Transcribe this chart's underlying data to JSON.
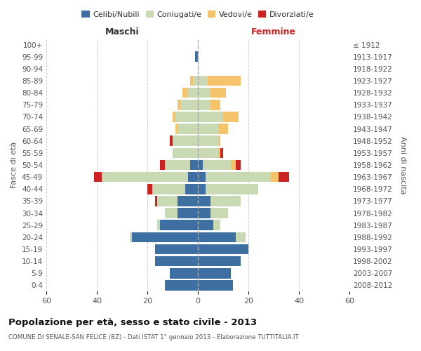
{
  "age_groups": [
    "0-4",
    "5-9",
    "10-14",
    "15-19",
    "20-24",
    "25-29",
    "30-34",
    "35-39",
    "40-44",
    "45-49",
    "50-54",
    "55-59",
    "60-64",
    "65-69",
    "70-74",
    "75-79",
    "80-84",
    "85-89",
    "90-94",
    "95-99",
    "100+"
  ],
  "year_labels": [
    "2008-2012",
    "2003-2007",
    "1998-2002",
    "1993-1997",
    "1988-1992",
    "1983-1987",
    "1978-1982",
    "1973-1977",
    "1968-1972",
    "1963-1967",
    "1958-1962",
    "1953-1957",
    "1948-1952",
    "1943-1947",
    "1938-1942",
    "1933-1937",
    "1928-1932",
    "1923-1927",
    "1918-1922",
    "1913-1917",
    "≤ 1912"
  ],
  "males": {
    "celibi": [
      13,
      11,
      17,
      17,
      26,
      15,
      8,
      8,
      5,
      4,
      3,
      0,
      0,
      0,
      0,
      0,
      0,
      0,
      0,
      1,
      0
    ],
    "coniugati": [
      0,
      0,
      0,
      0,
      1,
      1,
      5,
      8,
      13,
      34,
      10,
      10,
      10,
      8,
      9,
      7,
      4,
      2,
      0,
      0,
      0
    ],
    "vedovi": [
      0,
      0,
      0,
      0,
      0,
      0,
      0,
      0,
      0,
      0,
      0,
      0,
      0,
      1,
      1,
      1,
      2,
      1,
      0,
      0,
      0
    ],
    "divorziati": [
      0,
      0,
      0,
      0,
      0,
      0,
      0,
      1,
      2,
      3,
      2,
      0,
      1,
      0,
      0,
      0,
      0,
      0,
      0,
      0,
      0
    ]
  },
  "females": {
    "nubili": [
      14,
      13,
      17,
      20,
      15,
      6,
      5,
      5,
      3,
      3,
      2,
      0,
      0,
      0,
      0,
      0,
      0,
      0,
      0,
      0,
      0
    ],
    "coniugate": [
      0,
      0,
      0,
      0,
      4,
      3,
      7,
      12,
      21,
      26,
      11,
      8,
      8,
      8,
      10,
      5,
      5,
      4,
      0,
      0,
      0
    ],
    "vedove": [
      0,
      0,
      0,
      0,
      0,
      0,
      0,
      0,
      0,
      3,
      2,
      1,
      1,
      4,
      6,
      4,
      6,
      13,
      0,
      0,
      0
    ],
    "divorziate": [
      0,
      0,
      0,
      0,
      0,
      0,
      0,
      0,
      0,
      4,
      2,
      1,
      0,
      0,
      0,
      0,
      0,
      0,
      0,
      0,
      0
    ]
  },
  "colors": {
    "celibi": "#3d6fa3",
    "coniugati": "#c8d9b3",
    "vedovi": "#f5c46a",
    "divorziati": "#cc2222"
  },
  "title": "Popolazione per età, sesso e stato civile - 2013",
  "subtitle": "COMUNE DI SENALE-SAN FELICE (BZ) - Dati ISTAT 1° gennaio 2013 - Elaborazione TUTTITALIA.IT",
  "xlabel_left": "Maschi",
  "xlabel_right": "Femmine",
  "ylabel_left": "Fasce di età",
  "ylabel_right": "Anni di nascita",
  "xlim": 60,
  "bg_color": "#ffffff",
  "grid_color": "#cccccc"
}
